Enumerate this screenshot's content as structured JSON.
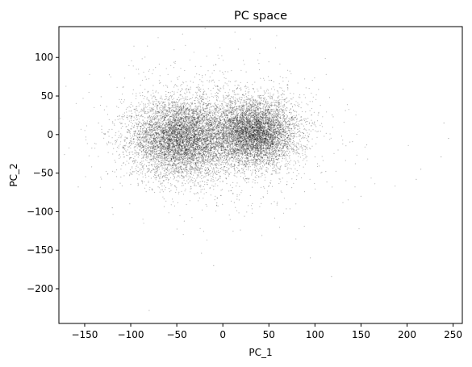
{
  "chart_data": {
    "type": "scatter",
    "title": "PC space",
    "xlabel": "PC_1",
    "ylabel": "PC_2",
    "xlim": [
      -178,
      260
    ],
    "ylim": [
      -245,
      140
    ],
    "xticks": [
      -150,
      -100,
      -50,
      0,
      50,
      100,
      150,
      200,
      250
    ],
    "yticks": [
      100,
      50,
      0,
      -50,
      -100,
      -150,
      -200
    ],
    "grid": false,
    "marker_color": "#000000",
    "clusters": [
      {
        "center": [
          -45,
          -5
        ],
        "spread": [
          27,
          25
        ],
        "weight": 0.46
      },
      {
        "center": [
          35,
          2
        ],
        "spread": [
          22,
          21
        ],
        "weight": 0.42
      },
      {
        "center": [
          0,
          0
        ],
        "spread": [
          60,
          45
        ],
        "weight": 0.12
      }
    ],
    "outliers": [
      [
        -157,
        -68
      ],
      [
        -10,
        -170
      ],
      [
        -80,
        -228
      ],
      [
        118,
        -184
      ],
      [
        240,
        15
      ],
      [
        237,
        -29
      ],
      [
        215,
        -45
      ],
      [
        210,
        -58
      ],
      [
        245,
        -5
      ],
      [
        150,
        -80
      ],
      [
        -135,
        15
      ],
      [
        95,
        -160
      ],
      [
        -120,
        -95
      ]
    ]
  }
}
